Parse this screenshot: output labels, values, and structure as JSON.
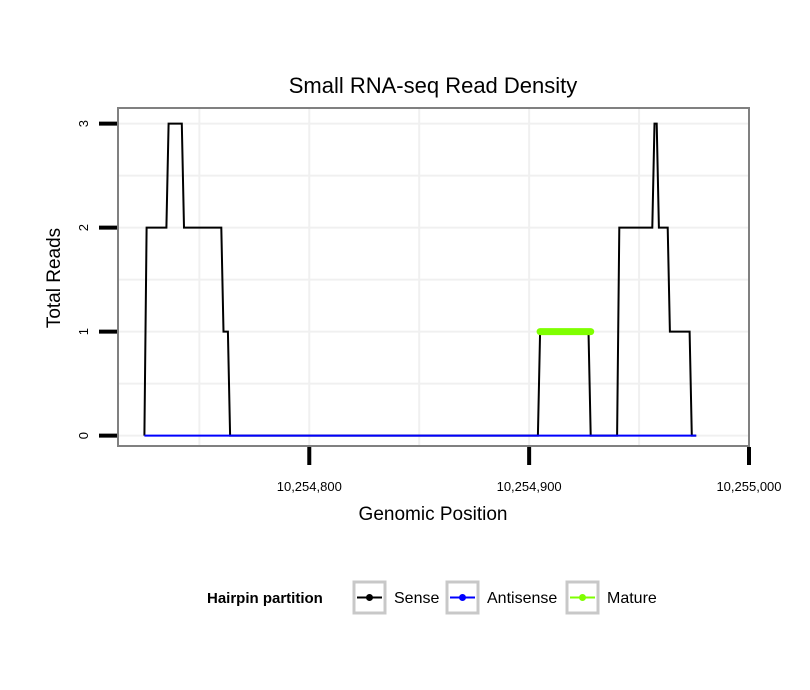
{
  "chart_data": {
    "type": "line",
    "title": "Small RNA-seq Read Density",
    "xlabel": "Genomic Position",
    "ylabel": "Total Reads",
    "xlim": [
      10254713,
      10255000
    ],
    "ylim": [
      -0.1,
      3.15
    ],
    "x_ticks": [
      {
        "value": 10254800,
        "label": "10,254,800"
      },
      {
        "value": 10254900,
        "label": "10,254,900"
      },
      {
        "value": 10255000,
        "label": "10,255,000"
      }
    ],
    "y_ticks": [
      {
        "value": 0,
        "label": "0"
      },
      {
        "value": 1,
        "label": "1"
      },
      {
        "value": 2,
        "label": "2"
      },
      {
        "value": 3,
        "label": "3"
      }
    ],
    "grid": true,
    "legend": {
      "title": "Hairpin partition",
      "position": "bottom"
    },
    "series": [
      {
        "name": "Sense",
        "color": "#000000",
        "points": [
          [
            10254725,
            0
          ],
          [
            10254726,
            2
          ],
          [
            10254735,
            2
          ],
          [
            10254736,
            3
          ],
          [
            10254742,
            3
          ],
          [
            10254743,
            2
          ],
          [
            10254760,
            2
          ],
          [
            10254761,
            1
          ],
          [
            10254763,
            1
          ],
          [
            10254764,
            0
          ],
          [
            10254904,
            0
          ],
          [
            10254905,
            1
          ],
          [
            10254927,
            1
          ],
          [
            10254928,
            0
          ],
          [
            10254940,
            0
          ],
          [
            10254941,
            2
          ],
          [
            10254956,
            2
          ],
          [
            10254957,
            3
          ],
          [
            10254958,
            3
          ],
          [
            10254959,
            2
          ],
          [
            10254963,
            2
          ],
          [
            10254964,
            1
          ],
          [
            10254973,
            1
          ],
          [
            10254974,
            0
          ],
          [
            10254976,
            0
          ]
        ]
      },
      {
        "name": "Antisense",
        "color": "#0000ff",
        "points": [
          [
            10254725,
            0
          ],
          [
            10254976,
            0
          ]
        ]
      },
      {
        "name": "Mature",
        "color": "#7fff00",
        "points": [
          [
            10254905,
            1
          ],
          [
            10254928,
            1
          ]
        ]
      }
    ]
  }
}
